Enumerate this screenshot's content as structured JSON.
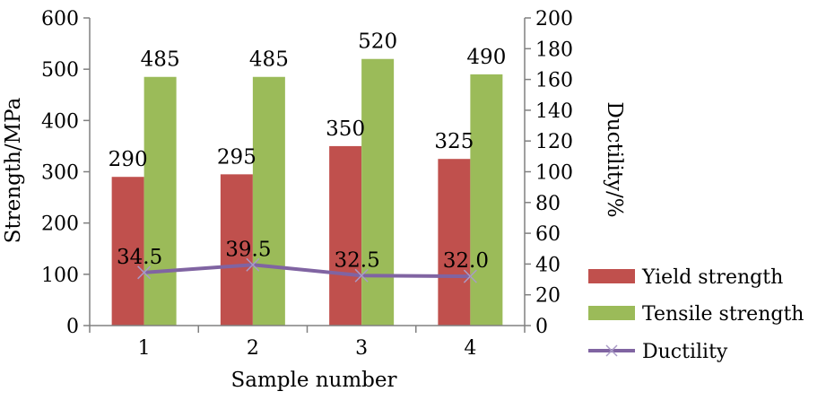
{
  "chart_data": {
    "type": "bar",
    "xlabel": "Sample number",
    "ylabel": "Strength/MPa",
    "y2label": "Ductility/%",
    "categories": [
      "1",
      "2",
      "3",
      "4"
    ],
    "ylim": [
      0,
      600
    ],
    "yticks": [
      0,
      100,
      200,
      300,
      400,
      500,
      600
    ],
    "y2lim": [
      0,
      200
    ],
    "y2ticks": [
      0,
      20,
      40,
      60,
      80,
      100,
      120,
      140,
      160,
      180,
      200
    ],
    "grid": false,
    "legend_position": "bottom-right",
    "series": [
      {
        "name": "Yield strength",
        "type": "bar",
        "axis": "left",
        "color": "#c0504d",
        "values": [
          290,
          295,
          350,
          325
        ],
        "labels": [
          "290",
          "295",
          "350",
          "325"
        ]
      },
      {
        "name": "Tensile strength",
        "type": "bar",
        "axis": "left",
        "color": "#9bbb59",
        "values": [
          485,
          485,
          520,
          490
        ],
        "labels": [
          "485",
          "485",
          "520",
          "490"
        ]
      },
      {
        "name": "Ductility",
        "type": "line",
        "axis": "right",
        "color": "#8064a2",
        "marker": "x",
        "values": [
          34.5,
          39.5,
          32.5,
          32.0
        ],
        "labels": [
          "34.5",
          "39.5",
          "32.5",
          "32.0"
        ]
      }
    ]
  }
}
